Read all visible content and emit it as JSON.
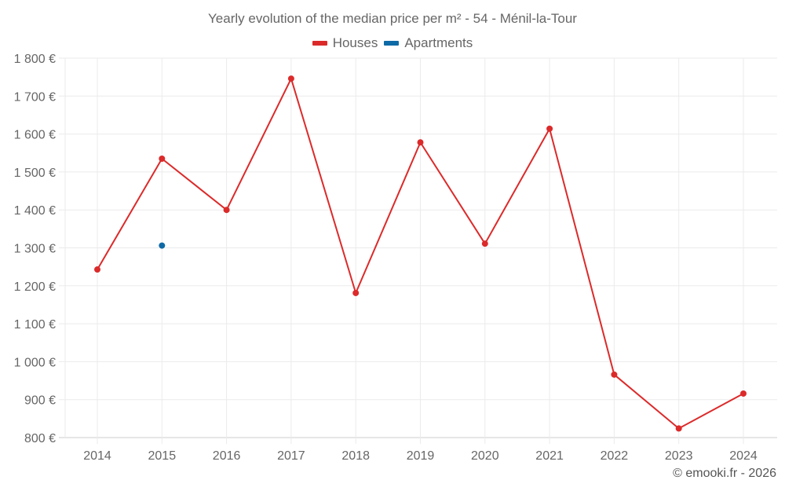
{
  "chart": {
    "title": "Yearly evolution of the median price per m² - 54 - Ménil-la-Tour",
    "credit": "© emooki.fr - 2026",
    "legend": [
      {
        "label": "Houses",
        "color": "#dc2a2a"
      },
      {
        "label": "Apartments",
        "color": "#0e6aa6"
      }
    ]
  },
  "chart_data": {
    "type": "line",
    "title": "Yearly evolution of the median price per m² - 54 - Ménil-la-Tour",
    "xlabel": "",
    "ylabel": "",
    "categories": [
      "2014",
      "2015",
      "2016",
      "2017",
      "2018",
      "2019",
      "2020",
      "2021",
      "2022",
      "2023",
      "2024"
    ],
    "y_ticks": [
      "800 €",
      "900 €",
      "1 000 €",
      "1 100 €",
      "1 200 €",
      "1 300 €",
      "1 400 €",
      "1 500 €",
      "1 600 €",
      "1 700 €",
      "1 800 €"
    ],
    "ylim": [
      800,
      1800
    ],
    "grid": true,
    "legend_position": "top",
    "series": [
      {
        "name": "Houses",
        "color": "#dc2a2a",
        "values": [
          1243,
          1535,
          1400,
          1746,
          1181,
          1578,
          1311,
          1614,
          966,
          824,
          916
        ]
      },
      {
        "name": "Apartments",
        "color": "#0e6aa6",
        "values": [
          null,
          1306,
          null,
          null,
          null,
          null,
          null,
          null,
          null,
          null,
          null
        ]
      }
    ]
  }
}
